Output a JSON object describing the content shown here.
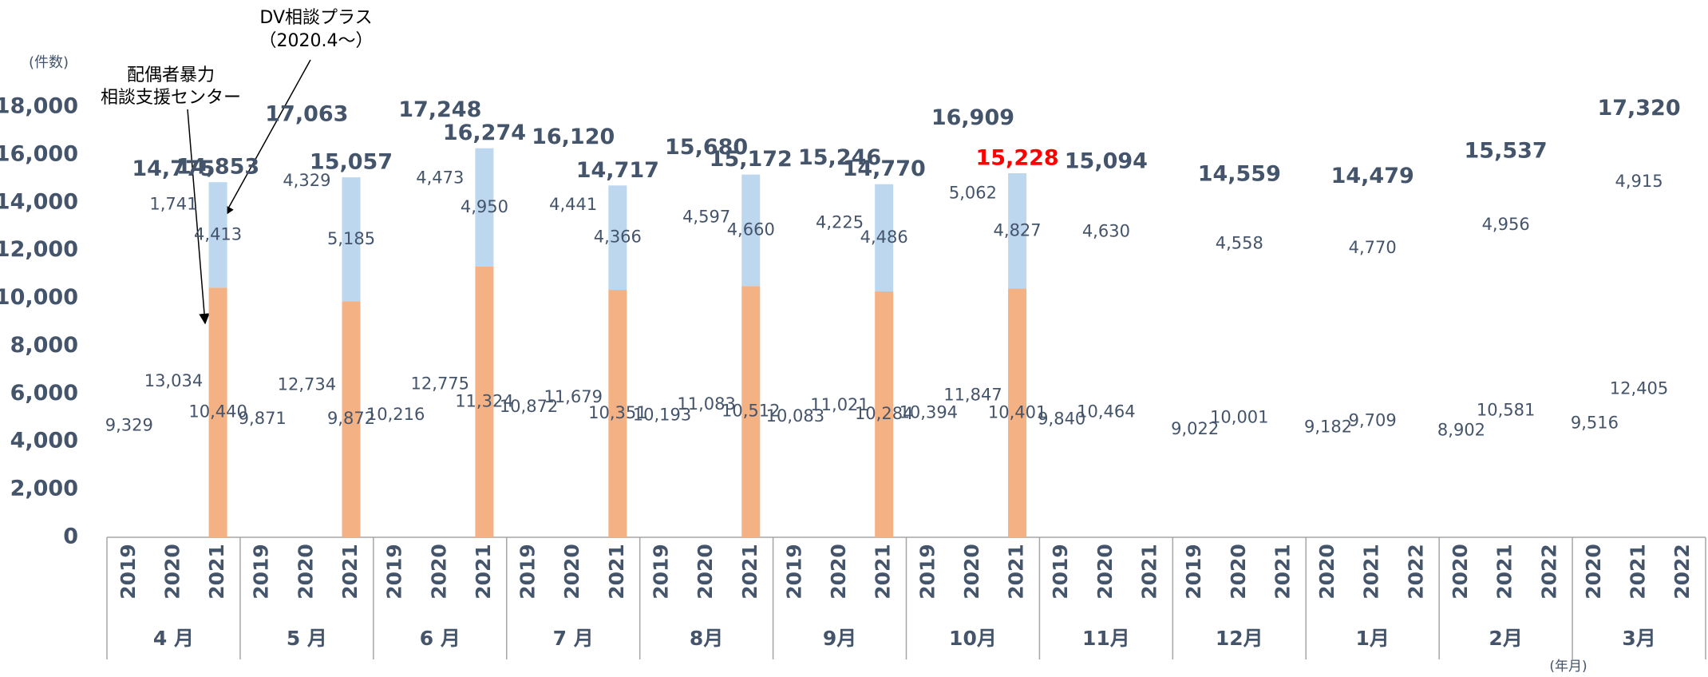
{
  "chart_data": {
    "type": "stacked_bar",
    "y_unit_label": "(件数)",
    "x_unit_label": "(年月)",
    "annotations": [
      "配偶者暴力",
      "相談支援センター",
      "DV相談プラス",
      "（2020.4～）"
    ],
    "ylim": [
      0,
      18000
    ],
    "yticks": [
      0,
      {
        "value": 2000,
        "label": "2,000"
      },
      {
        "value": 4000,
        "label": "4,000"
      },
      {
        "value": 6000,
        "label": "6,000"
      },
      {
        "value": 8000,
        "label": "8,000"
      },
      {
        "value": 10000,
        "label": "10,000"
      },
      {
        "value": 12000,
        "label": "12,000"
      },
      {
        "value": 14000,
        "label": "14,000"
      },
      {
        "value": 16000,
        "label": "16,000"
      },
      {
        "value": 18000,
        "label": "18,000"
      }
    ],
    "groups": [
      "4 月",
      "5 月",
      "6 月",
      "7 月",
      "8月",
      "9月",
      "10月",
      "11月",
      "12月",
      "1月",
      "2月",
      "3月"
    ],
    "categories": [
      "2019",
      "2020",
      "2021",
      "2019",
      "2020",
      "2021",
      "2019",
      "2020",
      "2021",
      "2019",
      "2020",
      "2021",
      "2019",
      "2020",
      "2021",
      "2019",
      "2020",
      "2021",
      "2019",
      "2020",
      "2021",
      "2019",
      "2020",
      "2021",
      "2019",
      "2020",
      "2021",
      "2020",
      "2021",
      "2022",
      "2020",
      "2021",
      "2022",
      "2020",
      "2021",
      "2022"
    ],
    "series": [
      {
        "values": [
          9329,
          13034,
          10440,
          9871,
          12734,
          9872,
          10216,
          12775,
          11324,
          10872,
          11679,
          10351,
          10193,
          11083,
          10512,
          10083,
          11021,
          10284,
          10394,
          11847,
          10401,
          9840,
          10464,
          null,
          9022,
          10001,
          null,
          9182,
          9709,
          null,
          8902,
          10581,
          null,
          9516,
          12405,
          null
        ],
        "value_labels": [
          "9,329",
          "13,034",
          "10,440",
          "9,871",
          "12,734",
          "9,872",
          "10,216",
          "12,775",
          "11,324",
          "10,872",
          "11,679",
          "10,351",
          "10,193",
          "11,083",
          "10,512",
          "10,083",
          "11,021",
          "10,284",
          "10,394",
          "11,847",
          "10,401",
          "9,840",
          "10,464",
          null,
          "9,022",
          "10,001",
          null,
          "9,182",
          "9,709",
          null,
          "8,902",
          "10,581",
          null,
          "9,516",
          "12,405",
          null
        ],
        "colors": [
          "none",
          "none",
          "#f4b183",
          "none",
          "none",
          "#f4b183",
          "none",
          "none",
          "#f4b183",
          "none",
          "none",
          "#f4b183",
          "none",
          "none",
          "#f4b183",
          "none",
          "none",
          "#f4b183",
          "none",
          "none",
          "#f4b183",
          "none",
          "none",
          null,
          "none",
          "none",
          null,
          "none",
          "none",
          null,
          "none",
          "none",
          null,
          "none",
          "none",
          null
        ]
      },
      {
        "values": [
          null,
          1741,
          4413,
          null,
          4329,
          5185,
          null,
          4473,
          4950,
          null,
          4441,
          4366,
          null,
          4597,
          4660,
          null,
          4225,
          4486,
          null,
          5062,
          4827,
          null,
          4630,
          null,
          null,
          4558,
          null,
          null,
          4770,
          null,
          null,
          4956,
          null,
          null,
          4915,
          null
        ],
        "value_labels": [
          null,
          "1,741",
          "4,413",
          null,
          "4,329",
          "5,185",
          null,
          "4,473",
          "4,950",
          null,
          "4,441",
          "4,366",
          null,
          "4,597",
          "4,660",
          null,
          "4,225",
          "4,486",
          null,
          "5,062",
          "4,827",
          null,
          "4,630",
          null,
          null,
          "4,558",
          null,
          null,
          "4,770",
          null,
          null,
          "4,956",
          null,
          null,
          "4,915",
          null
        ],
        "colors": [
          null,
          "none",
          "#bdd7ee",
          null,
          "none",
          "#bdd7ee",
          null,
          "none",
          "#bdd7ee",
          null,
          "none",
          "#bdd7ee",
          null,
          "none",
          "#bdd7ee",
          null,
          "none",
          "#bdd7ee",
          null,
          "none",
          "#bdd7ee",
          null,
          "none",
          null,
          null,
          "none",
          null,
          null,
          "none",
          null,
          null,
          "none",
          null,
          null,
          "none",
          null
        ]
      }
    ],
    "totals": [
      null,
      14775,
      14853,
      null,
      17063,
      15057,
      null,
      17248,
      16274,
      null,
      16120,
      14717,
      null,
      15680,
      15172,
      null,
      15246,
      14770,
      null,
      16909,
      15228,
      null,
      15094,
      null,
      null,
      14559,
      null,
      null,
      14479,
      null,
      null,
      15537,
      null,
      null,
      17320,
      null
    ],
    "total_labels": [
      null,
      "14,775",
      "14,853",
      null,
      "17,063",
      "15,057",
      null,
      "17,248",
      "16,274",
      null,
      "16,120",
      "14,717",
      null,
      "15,680",
      "15,172",
      null,
      "15,246",
      "14,770",
      null,
      "16,909",
      "15,228",
      null,
      "15,094",
      null,
      null,
      "14,559",
      null,
      null,
      "14,479",
      null,
      null,
      "15,537",
      null,
      null,
      "17,320",
      null
    ],
    "total_colors": [
      null,
      "#44546a",
      "#44546a",
      null,
      "#44546a",
      "#44546a",
      null,
      "#44546a",
      "#44546a",
      null,
      "#44546a",
      "#44546a",
      null,
      "#44546a",
      "#44546a",
      null,
      "#44546a",
      "#44546a",
      null,
      "#44546a",
      "#ff0000",
      null,
      "#44546a",
      null,
      null,
      "#44546a",
      null,
      null,
      "#44546a",
      null,
      null,
      "#44546a",
      null,
      null,
      "#44546a",
      null
    ]
  }
}
